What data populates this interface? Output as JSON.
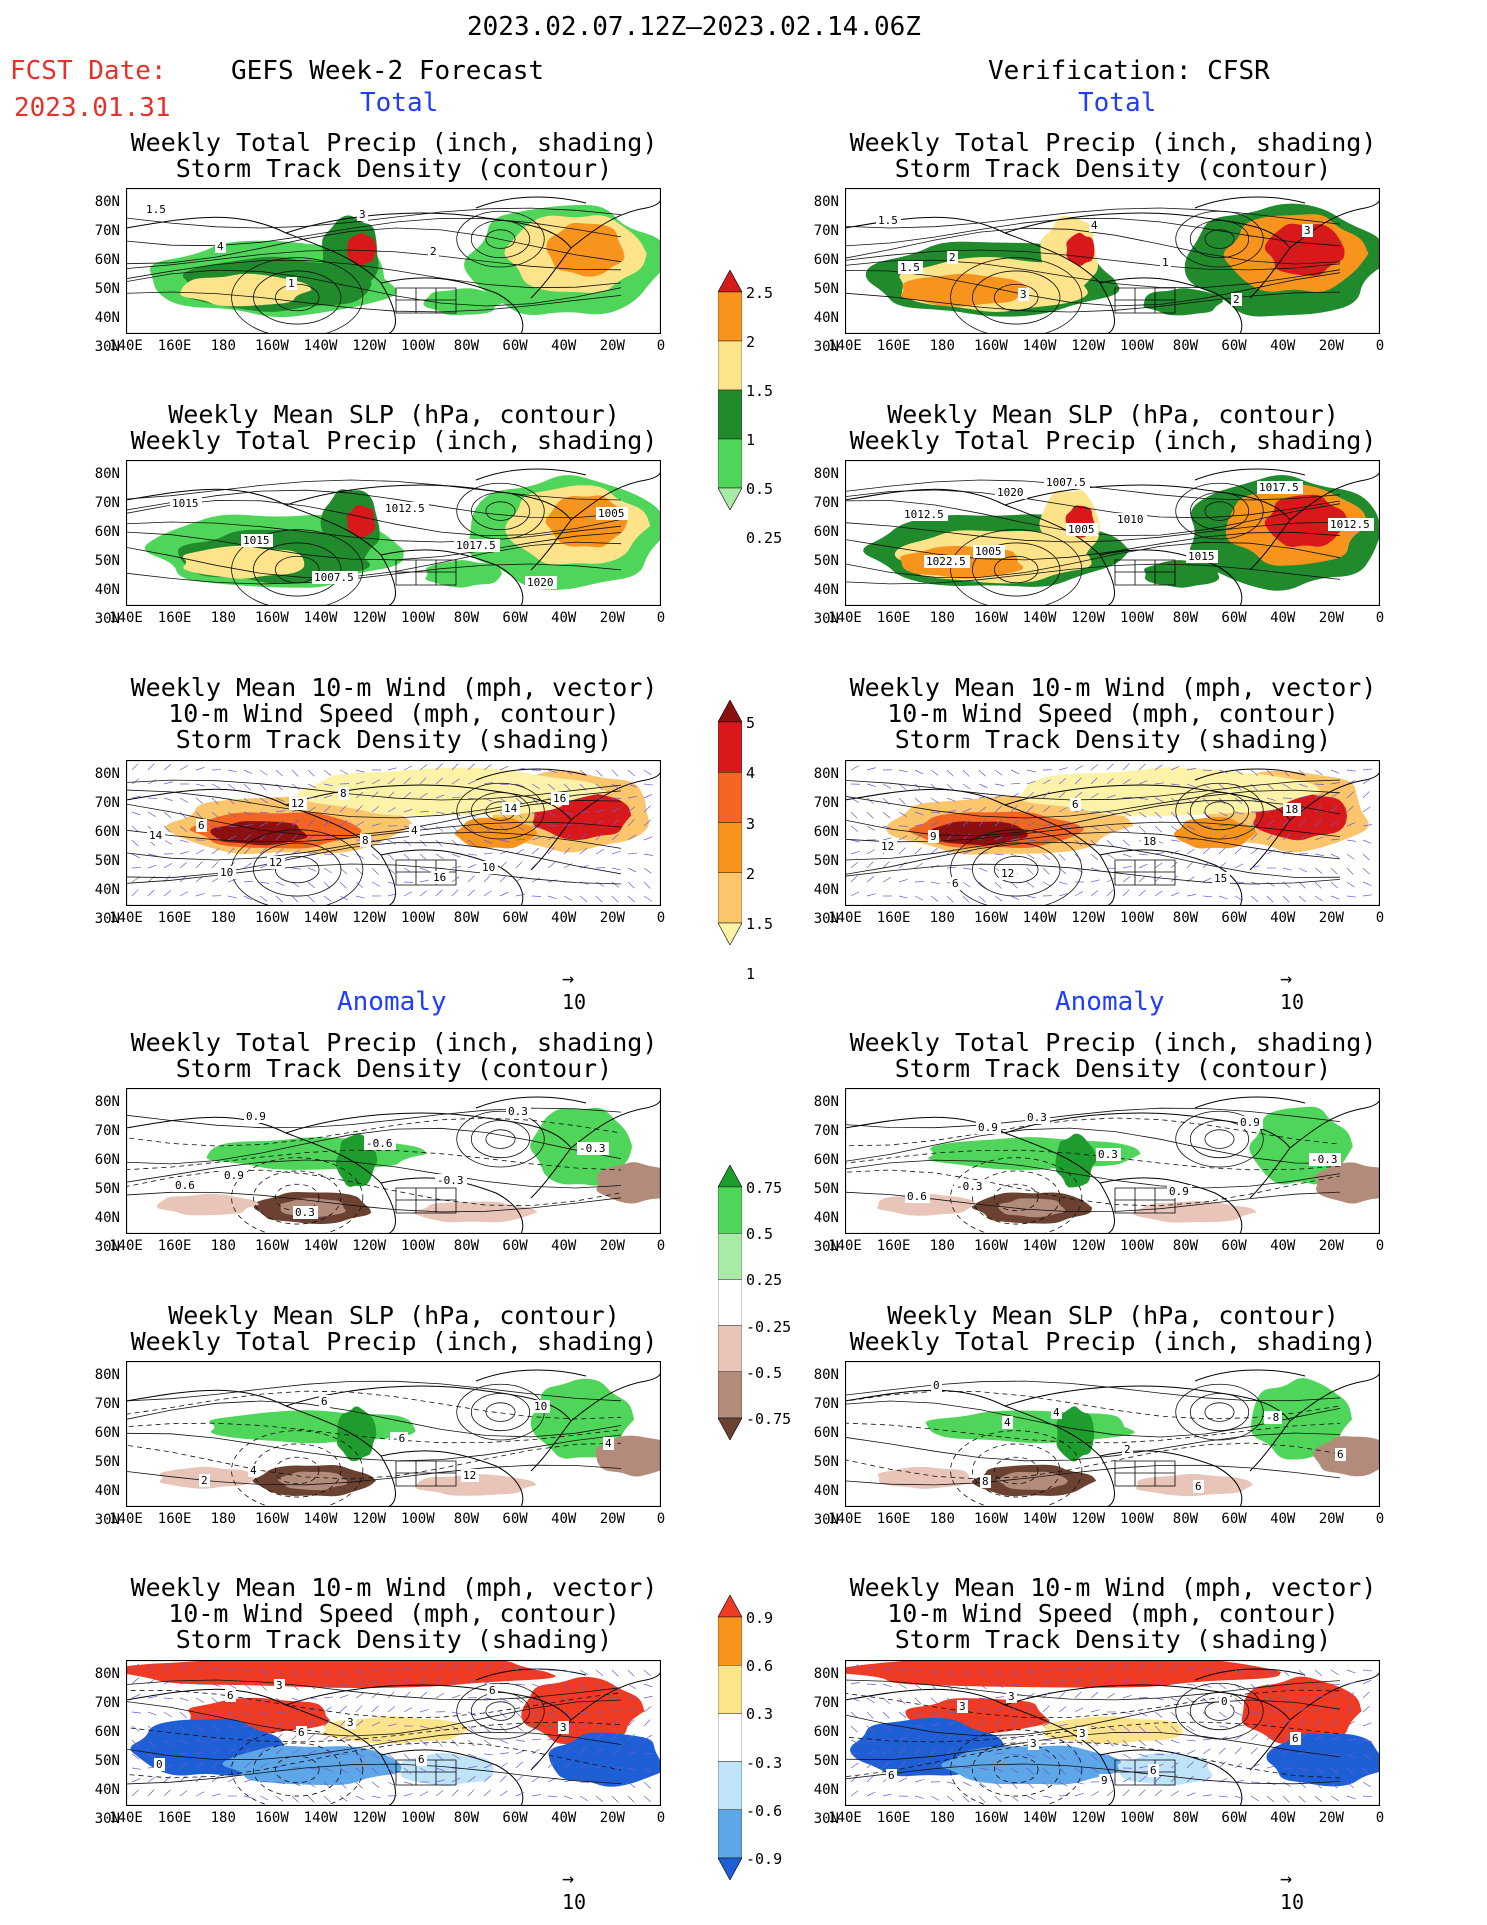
{
  "header": {
    "period": "2023.02.07.12Z–2023.02.14.06Z",
    "fcst_label": "FCST Date:",
    "fcst_date": "2023.01.31",
    "left_title": "GEFS Week-2 Forecast",
    "right_title": "Verification: CFSR",
    "total_label": "Total",
    "anomaly_label": "Anomaly"
  },
  "axes": {
    "lat_labels": [
      "80N",
      "70N",
      "60N",
      "50N",
      "40N",
      "30N"
    ],
    "lon_labels": [
      "140E",
      "160E",
      "180",
      "160W",
      "140W",
      "120W",
      "100W",
      "80W",
      "60W",
      "40W",
      "20W",
      "0"
    ]
  },
  "panels": {
    "precip_storm": [
      "Weekly Total Precip (inch, shading)",
      "Storm Track Density (contour)"
    ],
    "slp_precip": [
      "Weekly Mean SLP (hPa, contour)",
      "Weekly Total Precip (inch, shading)"
    ],
    "wind": [
      "Weekly Mean 10-m Wind (mph, vector)",
      "10-m Wind Speed (mph, contour)",
      "Storm Track Density (shading)"
    ]
  },
  "vector_ref": {
    "value": "10"
  },
  "colorbars": {
    "total_precip": {
      "labels": [
        "2.5",
        "2",
        "1.5",
        "1",
        "0.5",
        "0.25"
      ],
      "colors": [
        "#d7191c",
        "#f7941d",
        "#fde38a",
        "#208a2d",
        "#4fd65a",
        "#a8eaa6"
      ]
    },
    "total_storm": {
      "labels": [
        "5",
        "4",
        "3",
        "2",
        "1.5",
        "1"
      ],
      "colors": [
        "#8c1010",
        "#d7191c",
        "#f26522",
        "#f7941d",
        "#fbc56b",
        "#fdf3a8"
      ]
    },
    "anom_precip": {
      "labels": [
        "0.75",
        "0.5",
        "0.25",
        "-0.25",
        "-0.5",
        "-0.75"
      ],
      "colors": [
        "#1e9c2e",
        "#4fd65a",
        "#a8eaa6",
        "#ffffff",
        "#e8c5b8",
        "#b38b7b",
        "#6b4232"
      ]
    },
    "anom_storm": {
      "labels": [
        "0.9",
        "0.6",
        "0.3",
        "-0.3",
        "-0.6",
        "-0.9"
      ],
      "colors": [
        "#ef3b24",
        "#f7941d",
        "#fde38a",
        "#ffffff",
        "#bfe3f7",
        "#5da6e8",
        "#1f5fd6"
      ]
    }
  },
  "map_labels": {
    "fc_total_precip": [
      "1.5",
      "4",
      "1",
      "3",
      "2"
    ],
    "fc_total_slp": [
      "1015",
      "1015",
      "1007.5",
      "1012.5",
      "1017.5",
      "1020",
      "1005"
    ],
    "fc_total_wind": [
      "6",
      "12",
      "8",
      "4",
      "10",
      "16",
      "14",
      "10",
      "12",
      "8",
      "16",
      "14"
    ],
    "vf_total_precip": [
      "1.5",
      "2",
      "3",
      "4",
      "1",
      "2",
      "3",
      "1.5"
    ],
    "vf_total_slp": [
      "1012.5",
      "1005",
      "1007.5",
      "1010",
      "1015",
      "1017.5",
      "1012.5",
      "1022.5",
      "1020",
      "1005"
    ],
    "vf_total_wind": [
      "9",
      "12",
      "6",
      "18",
      "15",
      "18",
      "12",
      "6"
    ],
    "fc_anom_precip": [
      "0.9",
      "0.3",
      "-0.6",
      "-0.3",
      "0.3",
      "-0.3",
      "0.6",
      "0.9"
    ],
    "fc_anom_slp": [
      "4",
      "6",
      "-6",
      "12",
      "10",
      "4",
      "2"
    ],
    "fc_anom_wind": [
      "3",
      "3",
      "6",
      "6",
      "3",
      "0",
      "6",
      "6"
    ],
    "vf_anom_precip": [
      "-0.3",
      "0.3",
      "0.3",
      "0.9",
      "0.9",
      "-0.3",
      "0.6",
      "0.9"
    ],
    "vf_anom_slp": [
      "8",
      "4",
      "2",
      "6",
      "-8",
      "6",
      "0",
      "4"
    ],
    "vf_anom_wind": [
      "3",
      "3",
      "6",
      "0",
      "6",
      "6",
      "3",
      "3",
      "9"
    ]
  }
}
